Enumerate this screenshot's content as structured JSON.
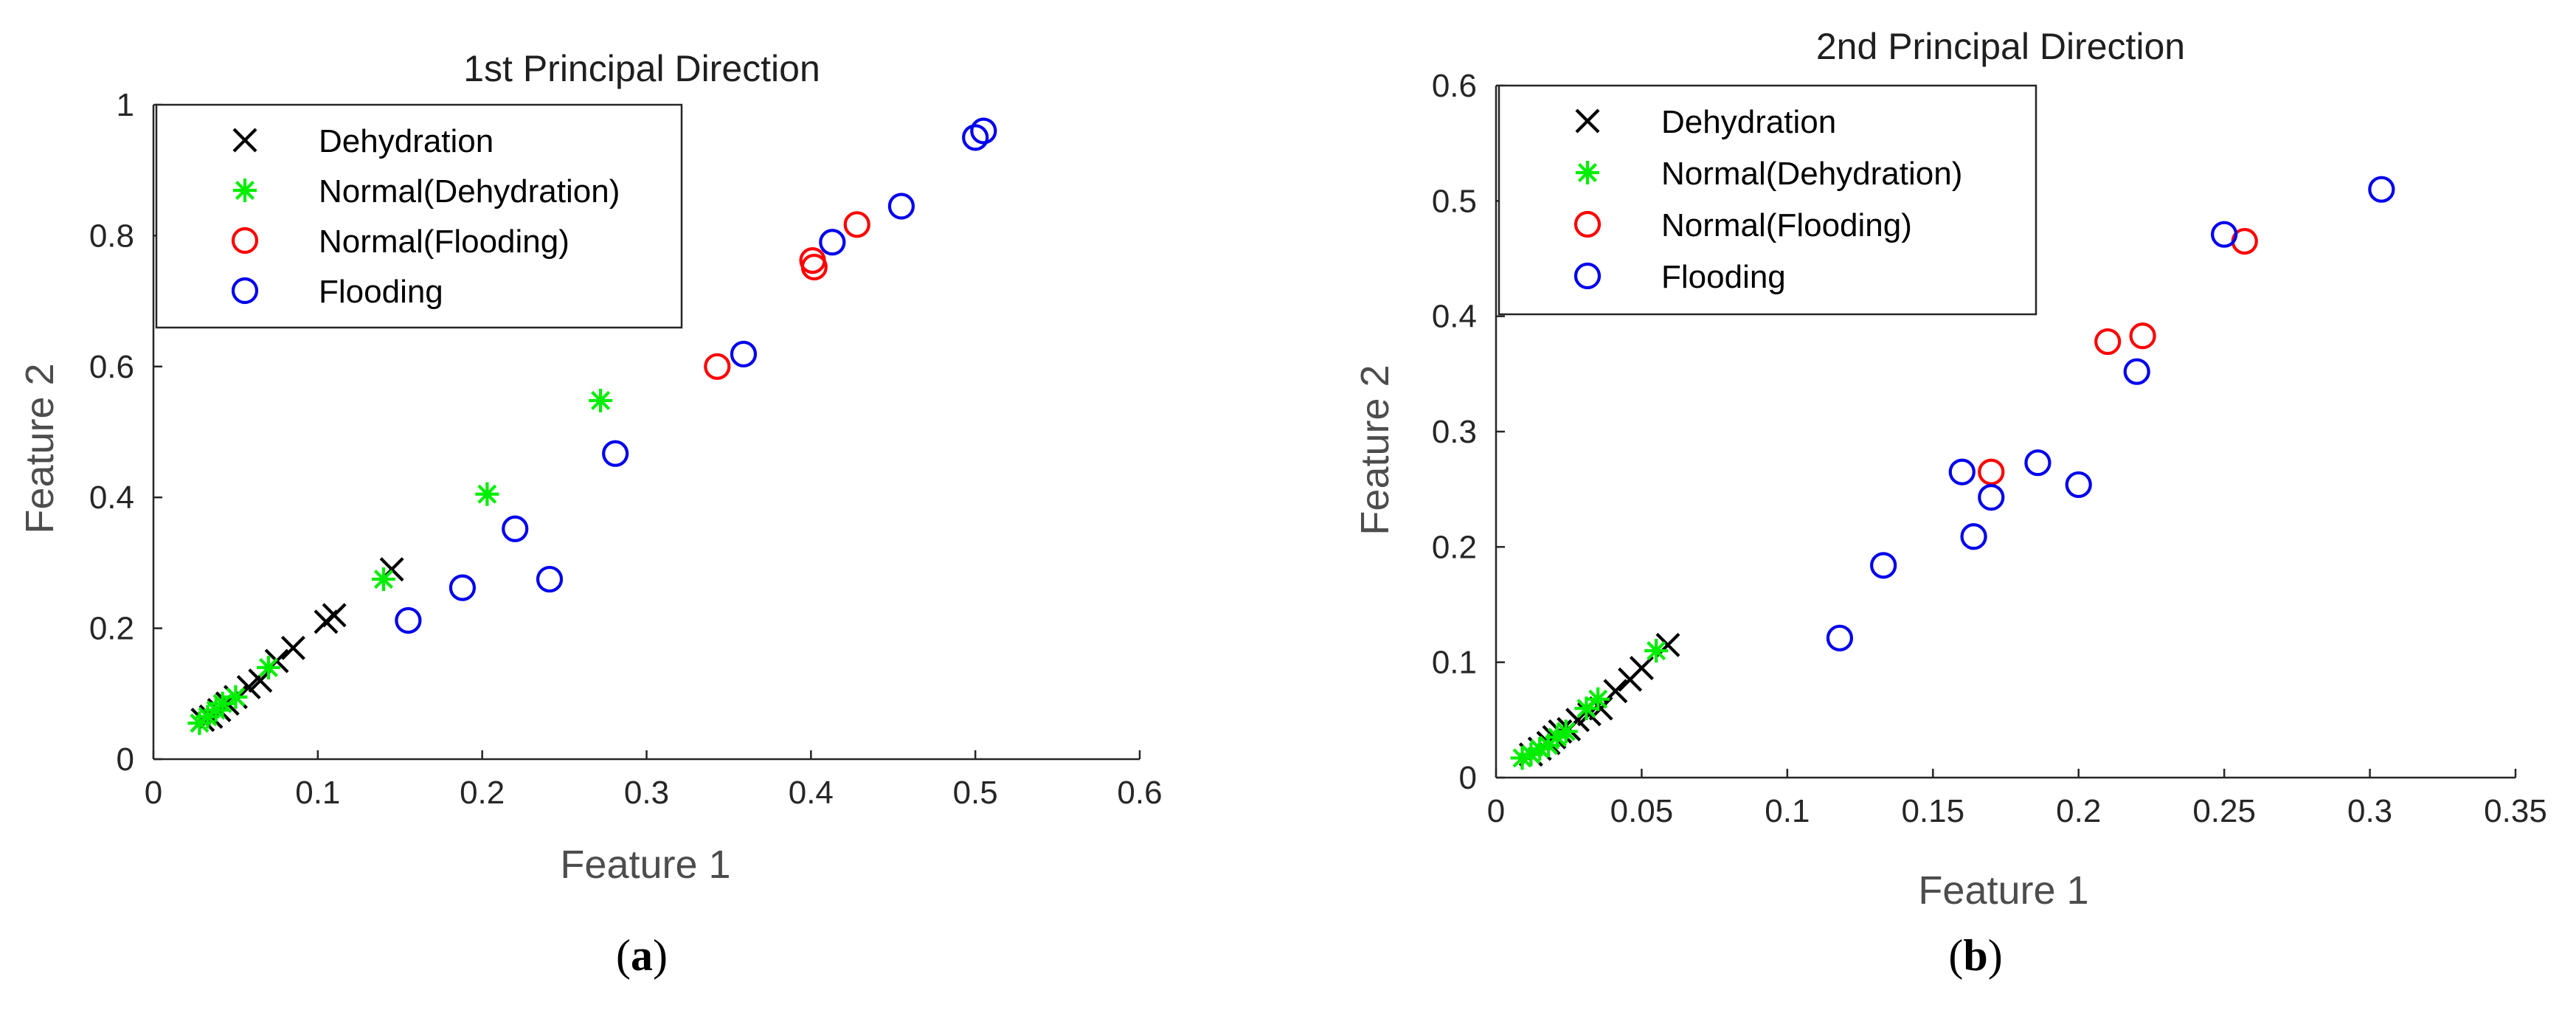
{
  "figure": {
    "panel_a_label": "a",
    "panel_b_label": "b",
    "paren_open": "(",
    "paren_close": ")"
  },
  "colors": {
    "dehydration": "#000000",
    "normal_dehydration": "#00ee00",
    "normal_flooding": "#ff0000",
    "flooding": "#0000ee"
  },
  "chart_data": [
    {
      "type": "scatter",
      "title": "1st Principal Direction",
      "xlabel": "Feature 1",
      "ylabel": "Feature 2",
      "xlim": [
        0,
        0.6
      ],
      "ylim": [
        0,
        1
      ],
      "xticks": [
        "0",
        "0.1",
        "0.2",
        "0.3",
        "0.4",
        "0.5",
        "0.6"
      ],
      "yticks": [
        "0",
        "0.2",
        "0.4",
        "0.6",
        "0.8",
        "1"
      ],
      "legend_position": "top-left",
      "series": [
        {
          "name": "Dehydration",
          "marker": "x",
          "color": "#000000",
          "x": [
            0.03,
            0.035,
            0.04,
            0.045,
            0.05,
            0.058,
            0.065,
            0.075,
            0.085,
            0.105,
            0.11,
            0.145
          ],
          "y": [
            0.06,
            0.065,
            0.075,
            0.085,
            0.095,
            0.11,
            0.12,
            0.15,
            0.17,
            0.21,
            0.22,
            0.29
          ]
        },
        {
          "name": "Normal(Dehydration)",
          "marker": "*",
          "color": "#00ee00",
          "x": [
            0.028,
            0.033,
            0.038,
            0.042,
            0.05,
            0.07,
            0.14,
            0.203,
            0.272
          ],
          "y": [
            0.055,
            0.065,
            0.075,
            0.085,
            0.095,
            0.14,
            0.275,
            0.405,
            0.548
          ]
        },
        {
          "name": "Normal(Flooding)",
          "marker": "o",
          "color": "#ff0000",
          "x": [
            0.343,
            0.401,
            0.402,
            0.428
          ],
          "y": [
            0.6,
            0.762,
            0.752,
            0.817
          ]
        },
        {
          "name": "Flooding",
          "marker": "o",
          "color": "#0000ee",
          "x": [
            0.155,
            0.188,
            0.22,
            0.241,
            0.281,
            0.359,
            0.413,
            0.455,
            0.5,
            0.505
          ],
          "y": [
            0.212,
            0.262,
            0.352,
            0.275,
            0.467,
            0.619,
            0.79,
            0.845,
            0.95,
            0.96
          ]
        }
      ]
    },
    {
      "type": "scatter",
      "title": "2nd Principal Direction",
      "xlabel": "Feature 1",
      "ylabel": "Feature 2",
      "xlim": [
        0,
        0.35
      ],
      "ylim": [
        0,
        0.6
      ],
      "xticks": [
        "0",
        "0.05",
        "0.1",
        "0.15",
        "0.2",
        "0.25",
        "0.3",
        "0.35"
      ],
      "yticks": [
        "0",
        "0.1",
        "0.2",
        "0.3",
        "0.4",
        "0.5",
        "0.6"
      ],
      "legend_position": "top-left",
      "series": [
        {
          "name": "Dehydration",
          "marker": "x",
          "color": "#000000",
          "x": [
            0.012,
            0.015,
            0.018,
            0.02,
            0.022,
            0.025,
            0.028,
            0.032,
            0.036,
            0.041,
            0.046,
            0.05,
            0.059
          ],
          "y": [
            0.02,
            0.025,
            0.03,
            0.035,
            0.04,
            0.042,
            0.05,
            0.055,
            0.06,
            0.075,
            0.085,
            0.095,
            0.115
          ]
        },
        {
          "name": "Normal(Dehydration)",
          "marker": "*",
          "color": "#00ee00",
          "x": [
            0.009,
            0.012,
            0.015,
            0.018,
            0.021,
            0.024,
            0.031,
            0.035,
            0.055
          ],
          "y": [
            0.017,
            0.02,
            0.025,
            0.028,
            0.035,
            0.04,
            0.06,
            0.068,
            0.11
          ]
        },
        {
          "name": "Normal(Flooding)",
          "marker": "o",
          "color": "#ff0000",
          "x": [
            0.17,
            0.21,
            0.222,
            0.257
          ],
          "y": [
            0.265,
            0.378,
            0.383,
            0.465
          ]
        },
        {
          "name": "Flooding",
          "marker": "o",
          "color": "#0000ee",
          "x": [
            0.118,
            0.133,
            0.16,
            0.164,
            0.17,
            0.186,
            0.2,
            0.22,
            0.25,
            0.304
          ],
          "y": [
            0.121,
            0.184,
            0.265,
            0.209,
            0.243,
            0.273,
            0.254,
            0.352,
            0.471,
            0.51
          ]
        }
      ]
    }
  ]
}
